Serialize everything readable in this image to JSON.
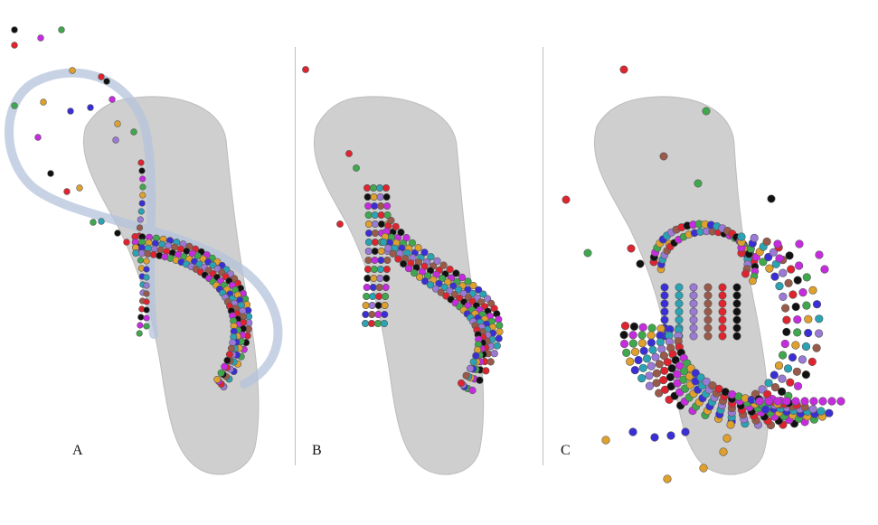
{
  "panels": [
    {
      "label": "A"
    },
    {
      "label": "B"
    },
    {
      "label": "C"
    }
  ],
  "colors": {
    "tooth": "#cfcfcf",
    "tooth_edge": "#bcbcbc",
    "guide_ribbon": "#b4c4dc",
    "red": "#e0242f",
    "black": "#111111",
    "magenta": "#c72be0",
    "green": "#3fa84d",
    "orange": "#e0a02c",
    "blue": "#3a2fd6",
    "cyan": "#2aa3b5",
    "lavender": "#9a7ad6",
    "brown": "#9a5a4a"
  },
  "palette": [
    "red",
    "black",
    "magenta",
    "green",
    "orange",
    "blue",
    "cyan",
    "lavender",
    "brown"
  ]
}
